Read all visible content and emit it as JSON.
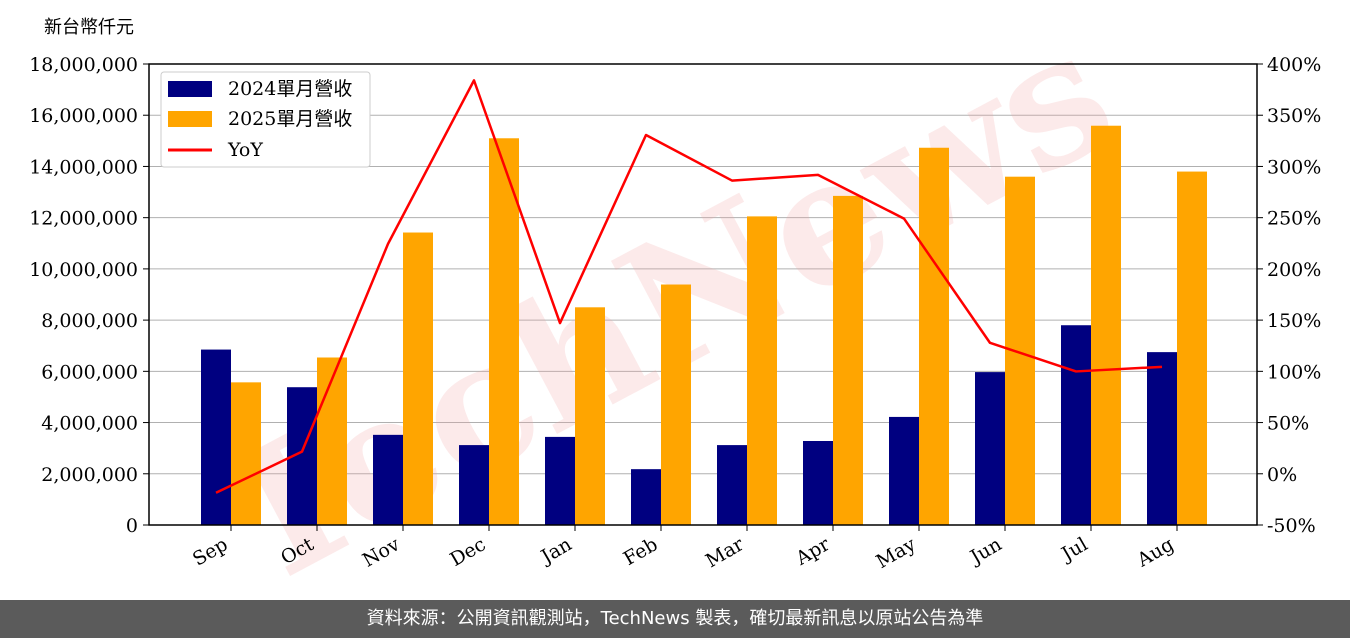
{
  "chart_data": {
    "type": "bar",
    "y_unit_label": "新台幣仟元",
    "categories": [
      "Sep",
      "Oct",
      "Nov",
      "Dec",
      "Jan",
      "Feb",
      "Mar",
      "Apr",
      "May",
      "Jun",
      "Jul",
      "Aug"
    ],
    "series": [
      {
        "name": "2024單月營收",
        "type": "bar",
        "axis": "left",
        "color": "#000080",
        "values": [
          6850000,
          5380000,
          3520000,
          3120000,
          3440000,
          2180000,
          3120000,
          3280000,
          4220000,
          5970000,
          7800000,
          6750000
        ]
      },
      {
        "name": "2025單月營收",
        "type": "bar",
        "axis": "left",
        "color": "#ffa500",
        "values": [
          5570000,
          6540000,
          11420000,
          15100000,
          8500000,
          9390000,
          12050000,
          12850000,
          14730000,
          13600000,
          15590000,
          13800000
        ]
      },
      {
        "name": "YoY",
        "type": "line",
        "axis": "right",
        "color": "#ff0000",
        "values": [
          -18.5,
          21.6,
          224.4,
          384.0,
          147.1,
          330.7,
          286.2,
          291.8,
          249.1,
          127.8,
          99.9,
          104.4
        ]
      }
    ],
    "y_left": {
      "min": 0,
      "max": 18000000,
      "ticks": [
        "0",
        "2,000,000",
        "4,000,000",
        "6,000,000",
        "8,000,000",
        "10,000,000",
        "12,000,000",
        "14,000,000",
        "16,000,000",
        "18,000,000"
      ]
    },
    "y_right": {
      "min": -50,
      "max": 400,
      "ticks": [
        "-50%",
        "0%",
        "50%",
        "100%",
        "150%",
        "200%",
        "250%",
        "300%",
        "350%",
        "400%"
      ]
    },
    "grid": true,
    "legend_position": "top-left"
  },
  "watermark": "TechNews",
  "footer": {
    "text": "資料來源：公開資訊觀測站，TechNews 製表，確切最新訊息以原站公告為準"
  }
}
